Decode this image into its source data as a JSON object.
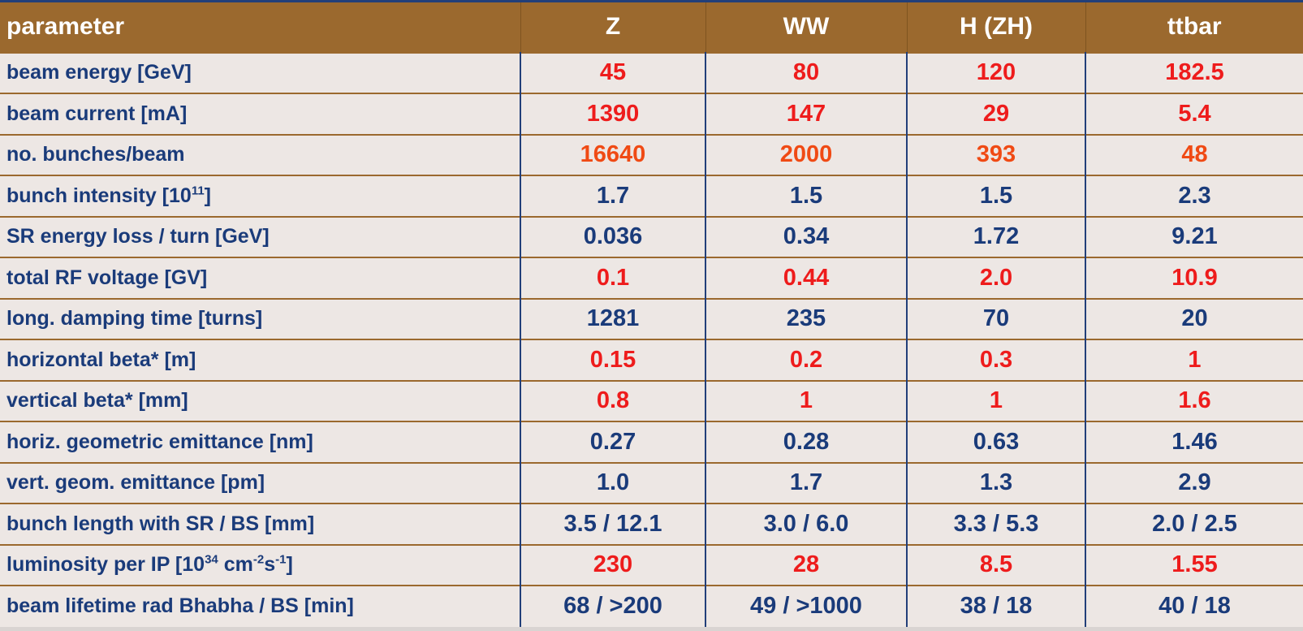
{
  "header": {
    "parameter": "parameter",
    "columns": [
      "Z",
      "WW",
      "H (ZH)",
      "ttbar"
    ]
  },
  "rows": [
    {
      "label": "beam energy [GeV]",
      "values": [
        "45",
        "80",
        "120",
        "182.5"
      ],
      "color": "red"
    },
    {
      "label": "beam current [mA]",
      "values": [
        "1390",
        "147",
        "29",
        "5.4"
      ],
      "color": "red"
    },
    {
      "label": "no. bunches/beam",
      "values": [
        "16640",
        "2000",
        "393",
        "48"
      ],
      "color": "orange"
    },
    {
      "label_pre": "bunch intensity  [10",
      "label_sup": "11",
      "label_post": "]",
      "values": [
        "1.7",
        "1.5",
        "1.5",
        "2.3"
      ],
      "color": "blue"
    },
    {
      "label": "SR energy loss / turn [GeV]",
      "values": [
        "0.036",
        "0.34",
        "1.72",
        "9.21"
      ],
      "color": "blue"
    },
    {
      "label": "total RF voltage [GV]",
      "values": [
        "0.1",
        "0.44",
        "2.0",
        "10.9"
      ],
      "color": "red"
    },
    {
      "label": "long. damping time [turns]",
      "values": [
        "1281",
        "235",
        "70",
        "20"
      ],
      "color": "blue"
    },
    {
      "label": "horizontal beta* [m]",
      "values": [
        "0.15",
        "0.2",
        "0.3",
        "1"
      ],
      "color": "red"
    },
    {
      "label": "vertical beta* [mm]",
      "values": [
        "0.8",
        "1",
        "1",
        "1.6"
      ],
      "color": "red"
    },
    {
      "label": "horiz. geometric emittance [nm]",
      "values": [
        "0.27",
        "0.28",
        "0.63",
        "1.46"
      ],
      "color": "blue"
    },
    {
      "label": "vert. geom. emittance [pm]",
      "values": [
        "1.0",
        "1.7",
        "1.3",
        "2.9"
      ],
      "color": "blue"
    },
    {
      "label": "bunch length with SR / BS [mm]",
      "values": [
        "3.5 / 12.1",
        "3.0 / 6.0",
        "3.3 / 5.3",
        "2.0 / 2.5"
      ],
      "color": "blue"
    },
    {
      "label_pre": "luminosity per IP [10",
      "label_sup": "34",
      "label_mid1": " cm",
      "label_sup2": "-2",
      "label_mid2": "s",
      "label_sup3": "-1",
      "label_post": "]",
      "values": [
        "230",
        "28",
        "8.5",
        "1.55"
      ],
      "color": "red"
    },
    {
      "label": "beam lifetime rad Bhabha / BS [min]",
      "values": [
        "68 / >200",
        "49 / >1000",
        "38 / 18",
        "40 / 18"
      ],
      "color": "blue"
    }
  ],
  "colors": {
    "header_bg": "#9b692e",
    "body_bg": "#ede7e4",
    "text_blue": "#1a3b7a",
    "text_red": "#ee1c1c",
    "text_orange": "#f04a14",
    "rule_gold": "#9b692e",
    "rule_blue": "#223f79"
  }
}
